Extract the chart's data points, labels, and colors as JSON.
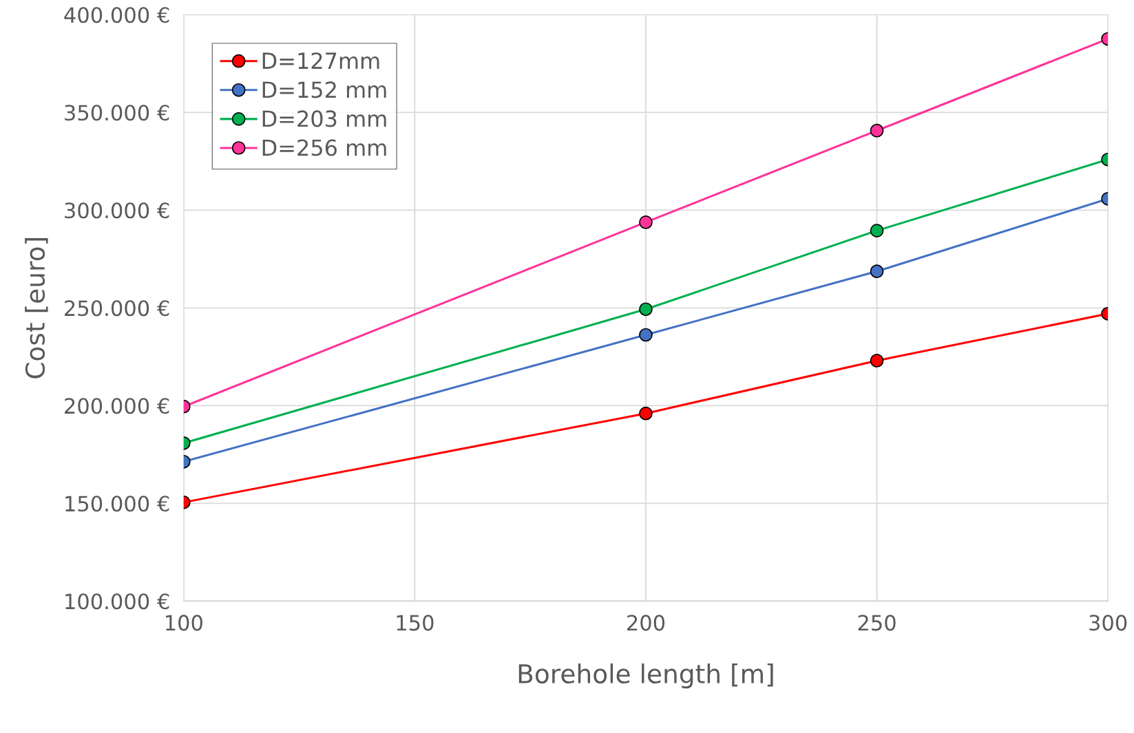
{
  "chart_data": {
    "type": "line",
    "xlabel": "Borehole length [m]",
    "ylabel": "Cost [euro]",
    "x": [
      100,
      200,
      250,
      300
    ],
    "series": [
      {
        "name": "D=127mm",
        "color": "#ff0000",
        "values": [
          150500,
          196000,
          223000,
          247000
        ]
      },
      {
        "name": "D=152 mm",
        "color": "#4472c4",
        "values": [
          171300,
          236200,
          268700,
          305800
        ]
      },
      {
        "name": "D=203 mm",
        "color": "#00b050",
        "values": [
          180800,
          249300,
          289500,
          325900
        ]
      },
      {
        "name": "D=256 mm",
        "color": "#ff3399",
        "values": [
          199500,
          293800,
          340700,
          387600
        ]
      }
    ],
    "xlim": [
      100,
      300
    ],
    "xticks": [
      100,
      150,
      200,
      250,
      300
    ],
    "ylim": [
      100000,
      400000
    ],
    "yticks": [
      {
        "value": 100000,
        "label": "100.000 €"
      },
      {
        "value": 150000,
        "label": "150.000 €"
      },
      {
        "value": 200000,
        "label": "200.000 €"
      },
      {
        "value": 250000,
        "label": "250.000 €"
      },
      {
        "value": 300000,
        "label": "300.000 €"
      },
      {
        "value": 350000,
        "label": "350.000 €"
      },
      {
        "value": 400000,
        "label": "400.000 €"
      }
    ],
    "grid": true,
    "legend": "top left",
    "marker": "circle",
    "line_style": "solid"
  }
}
